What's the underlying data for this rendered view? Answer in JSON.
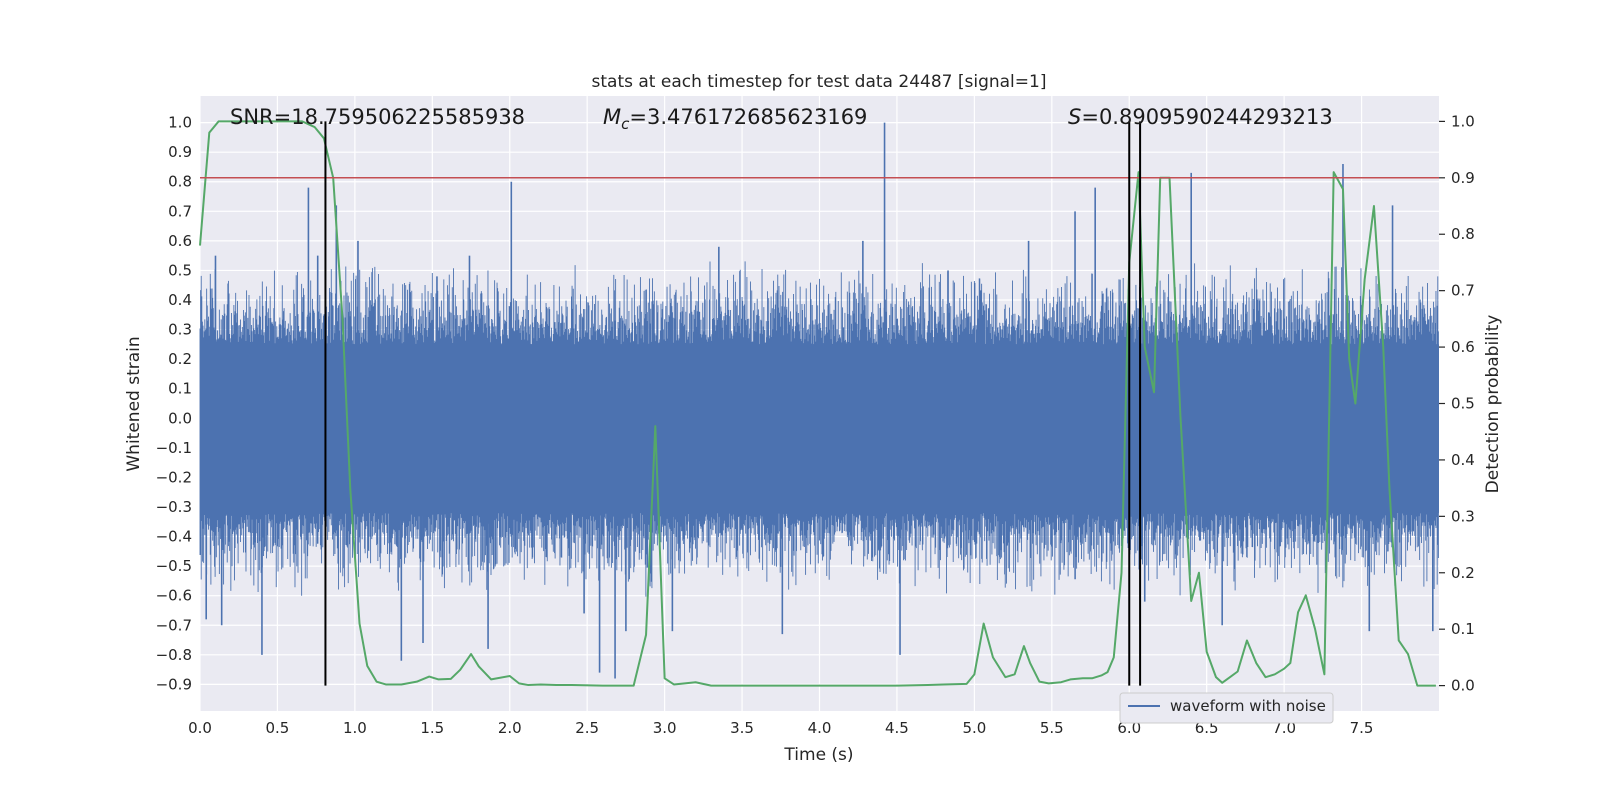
{
  "chart_data": {
    "type": "line",
    "title": "stats at each timestep for test data 24487 [signal=1]",
    "xlabel": "Time (s)",
    "ylabel": "Whitened strain",
    "ylabel_right": "Detection probability",
    "xlim": [
      0,
      8
    ],
    "ylim": [
      -0.99,
      1.09
    ],
    "ylim_right": [
      -0.045,
      1.045
    ],
    "x_ticks": [
      0.0,
      0.5,
      1.0,
      1.5,
      2.0,
      2.5,
      3.0,
      3.5,
      4.0,
      4.5,
      5.0,
      5.5,
      6.0,
      6.5,
      7.0,
      7.5
    ],
    "x_tick_labels": [
      "0.0",
      "0.5",
      "1.0",
      "1.5",
      "2.0",
      "2.5",
      "3.0",
      "3.5",
      "4.0",
      "4.5",
      "5.0",
      "5.5",
      "6.0",
      "6.5",
      "7.0",
      "7.5"
    ],
    "y_ticks": [
      -0.9,
      -0.8,
      -0.7,
      -0.6,
      -0.5,
      -0.4,
      -0.3,
      -0.2,
      -0.1,
      0.0,
      0.1,
      0.2,
      0.3,
      0.4,
      0.5,
      0.6,
      0.7,
      0.8,
      0.9,
      1.0
    ],
    "y_tick_labels": [
      "−0.9",
      "−0.8",
      "−0.7",
      "−0.6",
      "−0.5",
      "−0.4",
      "−0.3",
      "−0.2",
      "−0.1",
      "0.0",
      "0.1",
      "0.2",
      "0.3",
      "0.4",
      "0.5",
      "0.6",
      "0.7",
      "0.8",
      "0.9",
      "1.0"
    ],
    "y_right_ticks": [
      0.0,
      0.1,
      0.2,
      0.3,
      0.4,
      0.5,
      0.6,
      0.7,
      0.8,
      0.9,
      1.0
    ],
    "y_right_tick_labels": [
      "0.0",
      "0.1",
      "0.2",
      "0.3",
      "0.4",
      "0.5",
      "0.6",
      "0.7",
      "0.8",
      "0.9",
      "1.0"
    ],
    "annotations": {
      "snr": "SNR=18.759506225585938",
      "mc_symbol": "M",
      "mc_sub": "c",
      "mc_value": "=3.476172685623169",
      "s_symbol": "S",
      "s_value": "=0.8909590244293213"
    },
    "threshold": 0.9,
    "vertical_lines": [
      0.81,
      6.0,
      6.07
    ],
    "legend": {
      "label": "waveform with noise",
      "placement": "lower-right"
    },
    "grid": true,
    "series": [
      {
        "name": "waveform with noise",
        "axis": "left",
        "render": "dense noise band",
        "core_range": [
          -0.32,
          0.25
        ],
        "noise_scale": 0.16,
        "samples": 2048,
        "spikes": [
          [
            0.04,
            -0.68
          ],
          [
            0.1,
            0.55
          ],
          [
            0.14,
            -0.7
          ],
          [
            0.4,
            -0.8
          ],
          [
            0.7,
            0.78
          ],
          [
            0.76,
            0.55
          ],
          [
            0.88,
            0.72
          ],
          [
            1.02,
            0.6
          ],
          [
            1.3,
            -0.82
          ],
          [
            1.44,
            -0.76
          ],
          [
            1.53,
            0.48
          ],
          [
            1.74,
            0.55
          ],
          [
            1.86,
            -0.78
          ],
          [
            2.01,
            0.8
          ],
          [
            2.48,
            -0.66
          ],
          [
            2.58,
            -0.86
          ],
          [
            2.68,
            -0.88
          ],
          [
            2.75,
            -0.72
          ],
          [
            3.05,
            -0.72
          ],
          [
            3.35,
            0.58
          ],
          [
            3.76,
            -0.73
          ],
          [
            4.28,
            0.6
          ],
          [
            4.42,
            1.0
          ],
          [
            4.52,
            -0.8
          ],
          [
            4.83,
            0.5
          ],
          [
            5.35,
            0.6
          ],
          [
            5.65,
            0.7
          ],
          [
            5.78,
            0.78
          ],
          [
            6.1,
            -0.62
          ],
          [
            6.4,
            0.83
          ],
          [
            6.6,
            -0.7
          ],
          [
            7.38,
            0.86
          ],
          [
            7.55,
            -0.72
          ],
          [
            7.7,
            0.72
          ],
          [
            7.96,
            -0.72
          ]
        ]
      },
      {
        "name": "detection probability",
        "axis": "right",
        "color": "#55a868",
        "x": [
          0.0,
          0.06,
          0.12,
          0.2,
          0.3,
          0.4,
          0.5,
          0.58,
          0.66,
          0.74,
          0.8,
          0.86,
          0.92,
          0.97,
          1.03,
          1.08,
          1.14,
          1.2,
          1.3,
          1.4,
          1.48,
          1.54,
          1.62,
          1.68,
          1.75,
          1.8,
          1.88,
          2.0,
          2.06,
          2.12,
          2.2,
          2.3,
          2.4,
          2.6,
          2.8,
          2.88,
          2.94,
          3.0,
          3.06,
          3.2,
          3.3,
          3.5,
          3.7,
          3.9,
          4.1,
          4.3,
          4.5,
          4.7,
          4.8,
          4.95,
          5.0,
          5.06,
          5.12,
          5.2,
          5.26,
          5.32,
          5.36,
          5.42,
          5.48,
          5.56,
          5.62,
          5.7,
          5.76,
          5.82,
          5.86,
          5.9,
          5.95,
          6.0,
          6.06,
          6.1,
          6.16,
          6.2,
          6.26,
          6.33,
          6.4,
          6.45,
          6.5,
          6.56,
          6.6,
          6.65,
          6.7,
          6.76,
          6.82,
          6.88,
          6.94,
          7.0,
          7.04,
          7.09,
          7.14,
          7.2,
          7.26,
          7.32,
          7.38,
          7.42,
          7.46,
          7.52,
          7.58,
          7.64,
          7.68,
          7.74,
          7.8,
          7.86,
          7.92,
          7.98
        ],
        "values": [
          0.78,
          0.98,
          1.0,
          1.0,
          1.0,
          1.0,
          1.0,
          1.0,
          1.0,
          0.99,
          0.97,
          0.9,
          0.65,
          0.35,
          0.11,
          0.035,
          0.007,
          0.002,
          0.002,
          0.007,
          0.016,
          0.011,
          0.012,
          0.028,
          0.056,
          0.034,
          0.011,
          0.017,
          0.004,
          0.001,
          0.002,
          0.001,
          0.001,
          0.0,
          0.0,
          0.09,
          0.46,
          0.013,
          0.002,
          0.006,
          0.0,
          0.0,
          0.0,
          0.0,
          0.0,
          0.0,
          0.0,
          0.001,
          0.002,
          0.003,
          0.02,
          0.11,
          0.05,
          0.015,
          0.02,
          0.07,
          0.04,
          0.007,
          0.004,
          0.006,
          0.011,
          0.013,
          0.013,
          0.018,
          0.024,
          0.05,
          0.2,
          0.75,
          0.91,
          0.6,
          0.52,
          0.9,
          0.9,
          0.48,
          0.15,
          0.2,
          0.06,
          0.015,
          0.005,
          0.015,
          0.025,
          0.08,
          0.04,
          0.015,
          0.02,
          0.03,
          0.04,
          0.13,
          0.16,
          0.1,
          0.02,
          0.91,
          0.88,
          0.58,
          0.5,
          0.72,
          0.85,
          0.6,
          0.35,
          0.08,
          0.056,
          0.0,
          0.0,
          0.0
        ]
      }
    ]
  }
}
